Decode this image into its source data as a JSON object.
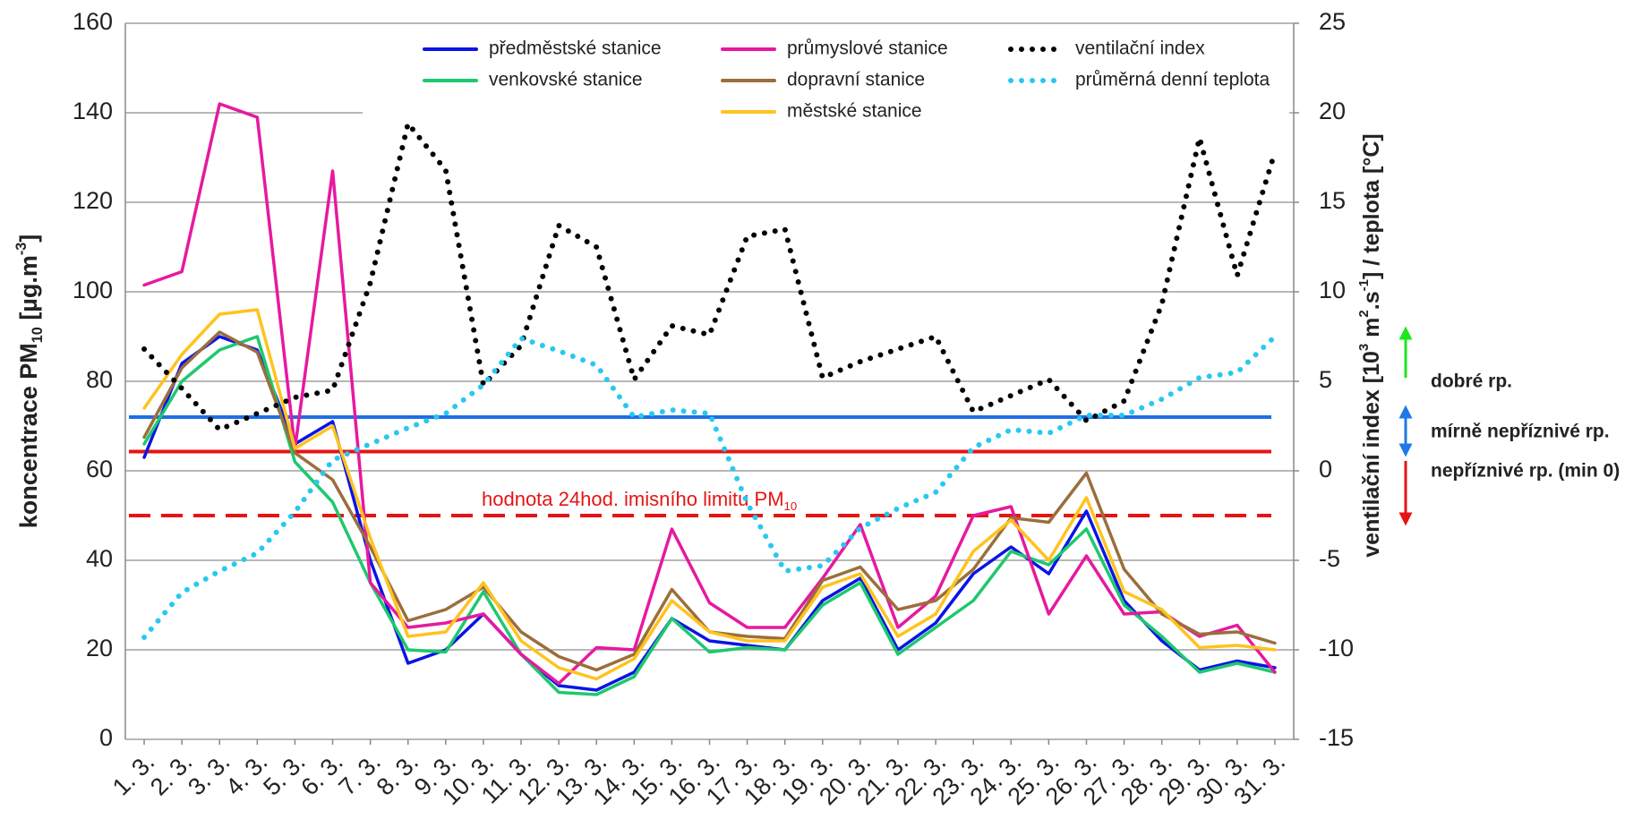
{
  "chart_data": {
    "type": "line",
    "categories": [
      "1. 3.",
      "2. 3.",
      "3. 3.",
      "4. 3.",
      "5. 3.",
      "6. 3.",
      "7. 3.",
      "8. 3.",
      "9. 3.",
      "10. 3.",
      "11. 3.",
      "12. 3.",
      "13. 3.",
      "14. 3.",
      "15. 3.",
      "16. 3.",
      "17. 3.",
      "18. 3.",
      "19. 3.",
      "20. 3.",
      "21. 3.",
      "22. 3.",
      "23. 3.",
      "24. 3.",
      "25. 3.",
      "26. 3.",
      "27. 3.",
      "28. 3.",
      "29. 3.",
      "30. 3.",
      "31. 3."
    ],
    "series": [
      {
        "name": "předměstské stanice",
        "color": "#0a14e6",
        "style": "solid",
        "values": [
          63,
          84,
          90,
          87,
          66,
          71,
          40,
          17,
          20,
          28,
          19,
          12,
          11,
          15,
          27,
          22,
          21,
          20,
          31,
          36,
          20,
          26,
          37,
          43,
          37,
          51,
          31,
          22,
          15.5,
          17.5,
          16
        ]
      },
      {
        "name": "venkovské stanice",
        "color": "#1ec86e",
        "style": "solid",
        "values": [
          66,
          80,
          87,
          90,
          62,
          53,
          35,
          20,
          19.5,
          33,
          19,
          10.5,
          10,
          14,
          27,
          19.5,
          20.5,
          20,
          30,
          35,
          19,
          25,
          31,
          42,
          39,
          47,
          30,
          23,
          15,
          17,
          15
        ]
      },
      {
        "name": "průmyslové stanice",
        "color": "#e619a0",
        "style": "solid",
        "values": [
          101.5,
          104.5,
          142,
          139,
          65,
          127,
          35,
          25,
          26,
          28,
          19,
          12.5,
          20.5,
          20,
          47,
          30.5,
          25,
          25,
          36,
          48,
          25,
          32,
          50,
          52,
          28,
          41,
          28,
          28.5,
          23,
          25.5,
          15
        ]
      },
      {
        "name": "dopravní stanice",
        "color": "#9b6e3c",
        "style": "solid",
        "values": [
          67.5,
          83,
          91,
          86.5,
          64,
          58,
          43,
          26.5,
          29,
          34,
          24,
          18.5,
          15.5,
          19,
          33.5,
          24,
          23,
          22.5,
          35.5,
          38.5,
          29,
          31,
          38,
          49.5,
          48.5,
          59.5,
          38,
          28,
          23.5,
          24,
          21.5
        ]
      },
      {
        "name": "městské stanice",
        "color": "#ffc31e",
        "style": "solid",
        "values": [
          74,
          86,
          95,
          96,
          65,
          70,
          45,
          23,
          24,
          35,
          22,
          16,
          13.5,
          18,
          31,
          24,
          22,
          22,
          34,
          37,
          23,
          28,
          42,
          49,
          40,
          54,
          33,
          29,
          20.5,
          21,
          20
        ]
      },
      {
        "name": "ventilační index",
        "color": "#000000",
        "style": "dotted",
        "axis": "y2",
        "values": [
          6.8,
          4.6,
          2.3,
          3.2,
          4.1,
          4.5,
          10.5,
          19.4,
          16.8,
          4.8,
          7,
          13.7,
          12.5,
          5.1,
          8.1,
          7.6,
          13.1,
          13.5,
          5.2,
          6.1,
          6.8,
          7.5,
          3.3,
          4.2,
          5.1,
          2.8,
          3.9,
          9.3,
          18.6,
          10.9,
          17.8
        ]
      },
      {
        "name": "průměrná denní teplota",
        "color": "#28c8f0",
        "style": "dotted",
        "axis": "y2",
        "values": [
          -9.3,
          -6.8,
          -5.6,
          -4.6,
          -2.3,
          0.6,
          1.5,
          2.4,
          3.2,
          4.8,
          7.4,
          6.7,
          5.9,
          3,
          3.4,
          3.2,
          -1.8,
          -5.6,
          -5.3,
          -3.2,
          -2.1,
          -1.2,
          1.3,
          2.3,
          2.1,
          3.1,
          3.1,
          4,
          5.2,
          5.5,
          7.5
        ]
      }
    ],
    "reference_lines": [
      {
        "value": 72,
        "color": "#1e6ee6",
        "style": "solid"
      },
      {
        "value": 64.3,
        "color": "#e61414",
        "style": "solid"
      },
      {
        "value": 50,
        "color": "#e61414",
        "style": "dashed",
        "label": [
          {
            "text": "hodnota 24hod. imisního limitu PM"
          },
          {
            "text": "10",
            "sub": true
          }
        ]
      }
    ],
    "ylabel": [
      {
        "text": "koncentrace PM"
      },
      {
        "text": "10",
        "sub": true
      },
      {
        "text": " [µg.m"
      },
      {
        "text": "-3",
        "sup": true
      },
      {
        "text": "]"
      }
    ],
    "y2label": [
      {
        "text": "ventilační index [10"
      },
      {
        "text": "3",
        "sup": true
      },
      {
        "text": " m"
      },
      {
        "text": "2",
        "sup": true
      },
      {
        "text": ".s"
      },
      {
        "text": "-1",
        "sup": true
      },
      {
        "text": "] / teplota [°C]"
      }
    ],
    "ylim": [
      0,
      160
    ],
    "yticks": [
      0,
      20,
      40,
      60,
      80,
      100,
      120,
      140,
      160
    ],
    "y2lim": [
      -15,
      25
    ],
    "y2ticks": [
      -15,
      -10,
      -5,
      0,
      5,
      10,
      15,
      20,
      25
    ],
    "grid": true,
    "annotations": [
      {
        "text": "dobré rp.",
        "color": "#1ee61e"
      },
      {
        "text": "mírně nepříznivé rp.",
        "color": "#1e78e6"
      },
      {
        "text": "nepříznivé rp. (min 0)",
        "color": "#e61414"
      }
    ]
  }
}
